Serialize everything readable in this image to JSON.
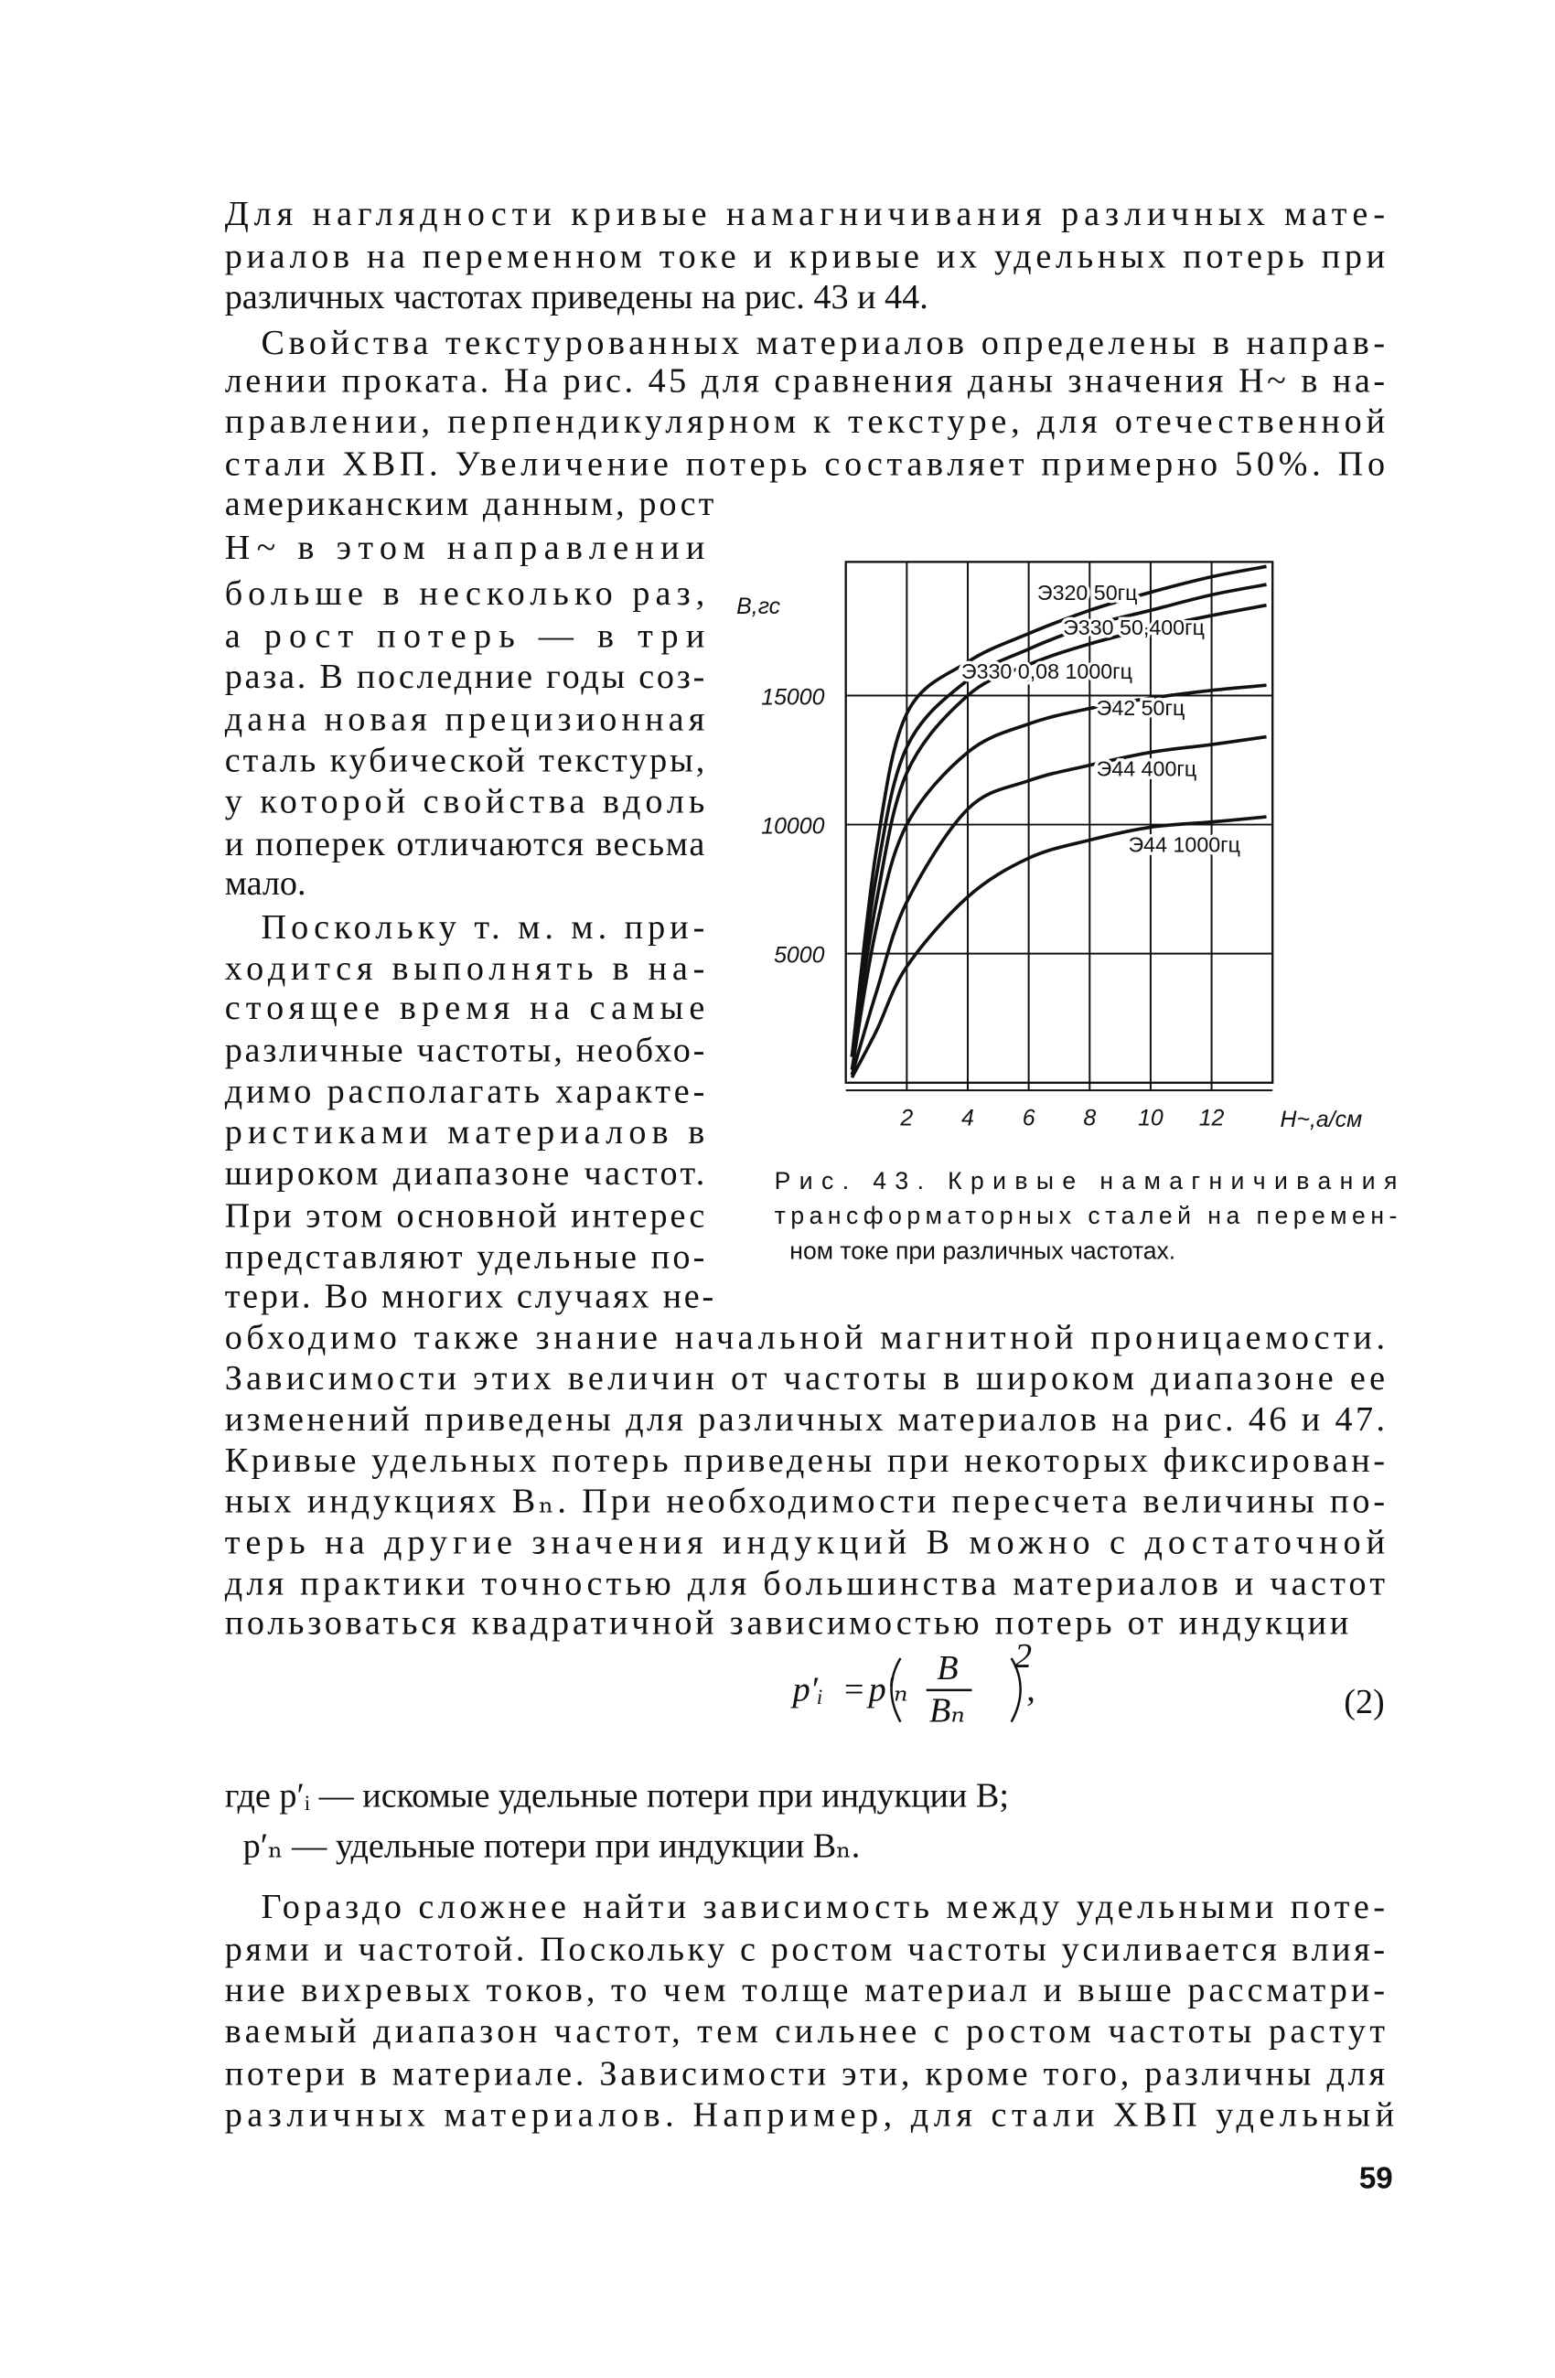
{
  "text_lines": [
    "Для наглядности кривые намагничивания различных мате-",
    "риалов на переменном токе и кривые их удельных потерь при",
    "различных частотах приведены на рис. 43 и 44.",
    "Свойства текстурованных материалов определены в направ-",
    "лении проката. На рис. 45 для сравнения даны значения H~ в на-",
    "правлении, перпендикулярном к текстуре, для отечественной",
    "стали ХВП. Увеличение потерь составляет примерно 50%. По",
    "американским данным, рост",
    "H~ в этом направлении",
    "больше в несколько раз,",
    "а рост потерь — в три",
    "раза. В последние годы соз-",
    "дана новая прецизионная",
    "сталь кубической текстуры,",
    "у которой свойства вдоль",
    "и поперек отличаются весьма",
    "мало.",
    "Поскольку т. м. м. при-",
    "ходится выполнять в на-",
    "стоящее время на самые",
    "различные частоты, необхо-",
    "димо располагать характе-",
    "ристиками материалов в",
    "широком диапазоне частот.",
    "При этом основной интерес",
    "представляют удельные по-",
    "тери. Во многих случаях не-",
    "обходимо также знание начальной магнитной проницаемости.",
    "Зависимости этих величин от частоты в широком диапазоне ее",
    "изменений приведены для различных материалов на рис. 46 и 47.",
    "Кривые удельных потерь приведены при некоторых фиксирован-",
    "ных индукциях Bₙ. При необходимости пересчета величины по-",
    "терь на другие значения индукций B можно с достаточной",
    "для практики точностью для большинства материалов и частот",
    "пользоваться квадратичной зависимостью потерь от индукции"
  ],
  "formula": {
    "lhs": "p′ᵢ",
    "eq": "=",
    "rhs": "p′ₙ",
    "num": "B",
    "den": "Bₙ",
    "exp": "2",
    "comma": ",",
    "tag": "(2)"
  },
  "definitions": [
    "где p′ᵢ — искомые удельные потери при индукции B;",
    "p′ₙ — удельные потери при индукции Bₙ."
  ],
  "text_lines_after": [
    "Гораздо сложнее найти зависимость между удельными поте-",
    "рями и частотой. Поскольку с ростом частоты усиливается влия-",
    "ние вихревых токов, то чем толще материал и выше рассматри-",
    "ваемый диапазон частот, тем сильнее с ростом частоты растут",
    "потери в материале. Зависимости эти, кроме того, различны для",
    "различных материалов. Например, для стали ХВП удельный"
  ],
  "page_number": "59",
  "chart_data": {
    "type": "line",
    "ylabel": "B,гс",
    "xlabel": "H~,а/см",
    "caption": [
      "Рис. 43. Кривые намагничивания",
      "трансформаторных сталей на перемен-",
      "ном токе при различных частотах."
    ],
    "x": [
      0.2,
      1,
      2,
      4,
      6,
      8,
      10,
      12,
      13.8
    ],
    "xlim": [
      0,
      14
    ],
    "ylim": [
      0,
      20000
    ],
    "xticks": [
      2,
      4,
      6,
      8,
      10,
      12
    ],
    "yticks": [
      5000,
      10000,
      15000
    ],
    "grid": true,
    "series": [
      {
        "name": "Э320 50гц",
        "color": "#111111",
        "values": [
          1000,
          9000,
          14300,
          16300,
          17400,
          18300,
          19000,
          19600,
          20000
        ]
      },
      {
        "name": "Э330 50,400гц",
        "color": "#111111",
        "values": [
          1000,
          8000,
          13000,
          15600,
          16800,
          17700,
          18300,
          18900,
          19300
        ]
      },
      {
        "name": "Э330 0,08 1000гц",
        "color": "#111111",
        "values": [
          1000,
          7000,
          12000,
          15000,
          16200,
          17000,
          17600,
          18100,
          18500
        ]
      },
      {
        "name": "Э42 50гц",
        "color": "#111111",
        "values": [
          500,
          6000,
          10000,
          12800,
          13900,
          14500,
          14900,
          15200,
          15400
        ]
      },
      {
        "name": "Э44 400гц",
        "color": "#111111",
        "values": [
          300,
          3500,
          7000,
          10600,
          11700,
          12300,
          12800,
          13100,
          13400
        ]
      },
      {
        "name": "Э44 1000гц",
        "color": "#111111",
        "values": [
          200,
          2000,
          4500,
          7200,
          8700,
          9400,
          9900,
          10100,
          10300
        ]
      }
    ]
  }
}
